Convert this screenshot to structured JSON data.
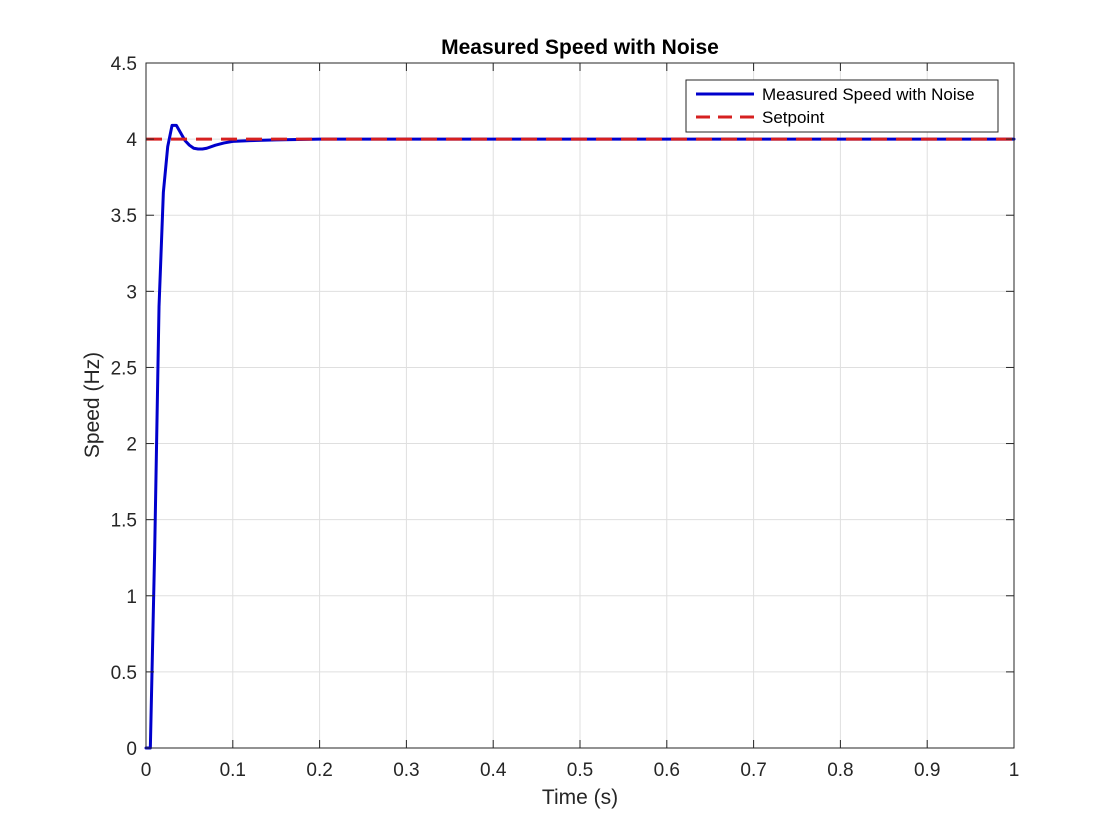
{
  "chart_data": {
    "type": "line",
    "title": "Measured Speed with Noise",
    "xlabel": "Time (s)",
    "ylabel": "Speed (Hz)",
    "xlim": [
      0,
      1
    ],
    "ylim": [
      0,
      4.5
    ],
    "x_ticks": [
      "0",
      "0.1",
      "0.2",
      "0.3",
      "0.4",
      "0.5",
      "0.6",
      "0.7",
      "0.8",
      "0.9",
      "1"
    ],
    "y_ticks": [
      "0",
      "0.5",
      "1",
      "1.5",
      "2",
      "2.5",
      "3",
      "3.5",
      "4",
      "4.5"
    ],
    "grid": true,
    "legend_position": "top-right",
    "series": [
      {
        "name": "Measured Speed with Noise",
        "color": "#0000cc",
        "style": "solid",
        "x": [
          0,
          0.005,
          0.01,
          0.015,
          0.02,
          0.025,
          0.03,
          0.035,
          0.04,
          0.045,
          0.05,
          0.055,
          0.06,
          0.065,
          0.07,
          0.08,
          0.09,
          0.1,
          0.12,
          0.15,
          0.2,
          0.3,
          0.4,
          0.5,
          0.6,
          0.7,
          0.8,
          0.9,
          1.0
        ],
        "y": [
          0,
          0,
          1.3,
          2.9,
          3.65,
          3.95,
          4.09,
          4.09,
          4.04,
          3.99,
          3.96,
          3.94,
          3.935,
          3.935,
          3.94,
          3.96,
          3.975,
          3.985,
          3.99,
          3.995,
          4.0,
          4.0,
          4.0,
          4.0,
          4.0,
          4.0,
          4.0,
          4.0,
          4.0
        ]
      },
      {
        "name": "Setpoint",
        "color": "#d62020",
        "style": "dashed",
        "x": [
          0,
          1
        ],
        "y": [
          4,
          4
        ]
      }
    ]
  }
}
